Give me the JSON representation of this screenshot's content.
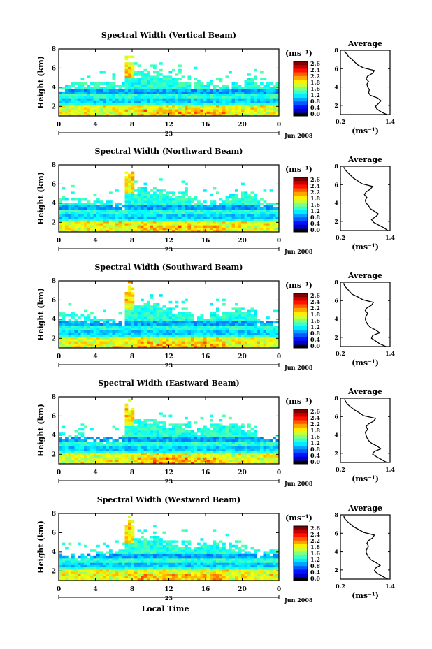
{
  "common": {
    "time_ticks": [
      "0",
      "4",
      "8",
      "12",
      "16",
      "20",
      "0"
    ],
    "height_ticks": [
      "2",
      "4",
      "6",
      "8"
    ],
    "date_day": "23",
    "date_month": "Jun 2008",
    "height_label": "Height (km)",
    "colorbar_unit": "(ms⁻¹)",
    "colorbar_ticks": [
      "2.6",
      "2.4",
      "2.2",
      "1.8",
      "1.6",
      "1.2",
      "0.8",
      "0.4",
      "0.0"
    ],
    "avg_title": "Average",
    "avg_xticks": [
      "0.2",
      "1.4"
    ],
    "avg_ylim": [
      1,
      8
    ],
    "avg_xlim": [
      0.2,
      1.4
    ],
    "xlabel": "Local Time"
  },
  "chart_data": [
    {
      "type": "heatmap",
      "title": "Spectral Width (Vertical Beam)",
      "avg": {
        "type": "line",
        "heights": [
          1.0,
          1.3,
          1.6,
          1.9,
          2.2,
          2.5,
          2.8,
          3.1,
          3.4,
          3.7,
          4.0,
          4.3,
          4.6,
          4.9,
          5.2,
          5.5,
          5.8,
          6.1,
          6.4,
          6.7,
          7.0,
          7.3,
          7.6,
          7.9
        ],
        "values": [
          1.32,
          1.18,
          1.08,
          1.05,
          1.12,
          1.18,
          1.1,
          0.92,
          0.88,
          0.9,
          0.86,
          0.84,
          0.88,
          0.82,
          0.86,
          0.98,
          1.02,
          0.75,
          0.62,
          0.55,
          0.48,
          0.4,
          0.35,
          0.3
        ]
      }
    },
    {
      "type": "heatmap",
      "title": "Spectral Width (Northward Beam)",
      "avg": {
        "type": "line",
        "heights": [
          1.0,
          1.3,
          1.6,
          1.9,
          2.2,
          2.5,
          2.8,
          3.1,
          3.4,
          3.7,
          4.0,
          4.3,
          4.6,
          4.9,
          5.2,
          5.5,
          5.8,
          6.1,
          6.4,
          6.7,
          7.0,
          7.3,
          7.6,
          7.9
        ],
        "values": [
          1.35,
          1.25,
          1.12,
          1.0,
          0.95,
          1.05,
          1.12,
          1.02,
          0.92,
          0.88,
          0.82,
          0.8,
          0.84,
          0.78,
          0.82,
          0.92,
          0.98,
          0.72,
          0.62,
          0.52,
          0.45,
          0.38,
          0.32,
          0.28
        ]
      }
    },
    {
      "type": "heatmap",
      "title": "Spectral Width (Southward Beam)",
      "avg": {
        "type": "line",
        "heights": [
          1.0,
          1.3,
          1.6,
          1.9,
          2.2,
          2.5,
          2.8,
          3.1,
          3.4,
          3.7,
          4.0,
          4.3,
          4.6,
          4.9,
          5.2,
          5.5,
          5.8,
          6.1,
          6.4,
          6.7,
          7.0,
          7.3,
          7.6,
          7.9
        ],
        "values": [
          1.3,
          1.15,
          1.05,
          0.95,
          0.98,
          1.15,
          1.05,
          0.92,
          0.86,
          0.82,
          0.8,
          0.82,
          0.86,
          0.8,
          0.84,
          0.95,
          1.0,
          0.74,
          0.62,
          0.48,
          0.42,
          0.36,
          0.3,
          0.28
        ]
      }
    },
    {
      "type": "heatmap",
      "title": "Spectral Width (Eastward Beam)",
      "avg": {
        "type": "line",
        "heights": [
          1.0,
          1.3,
          1.6,
          1.9,
          2.2,
          2.5,
          2.8,
          3.1,
          3.4,
          3.7,
          4.0,
          4.3,
          4.6,
          4.9,
          5.2,
          5.5,
          5.8,
          6.1,
          6.4,
          6.7,
          7.0,
          7.3,
          7.6,
          7.9
        ],
        "values": [
          1.32,
          1.2,
          1.08,
          0.98,
          1.02,
          1.18,
          1.08,
          0.95,
          0.88,
          0.84,
          0.82,
          0.8,
          0.86,
          0.82,
          0.88,
          1.0,
          1.05,
          0.76,
          0.66,
          0.55,
          0.46,
          0.38,
          0.33,
          0.3
        ]
      }
    },
    {
      "type": "heatmap",
      "title": "Spectral Width (Westward Beam)",
      "avg": {
        "type": "line",
        "heights": [
          1.0,
          1.3,
          1.6,
          1.9,
          2.2,
          2.5,
          2.8,
          3.1,
          3.4,
          3.7,
          4.0,
          4.3,
          4.6,
          4.9,
          5.2,
          5.5,
          5.8,
          6.1,
          6.4,
          6.7,
          7.0,
          7.3,
          7.6,
          7.9
        ],
        "values": [
          1.34,
          1.22,
          1.1,
          1.02,
          1.05,
          1.16,
          1.06,
          0.94,
          0.88,
          0.84,
          0.82,
          0.84,
          0.88,
          0.84,
          0.88,
          0.98,
          1.02,
          0.76,
          0.64,
          0.52,
          0.44,
          0.36,
          0.3,
          0.28
        ]
      }
    }
  ]
}
